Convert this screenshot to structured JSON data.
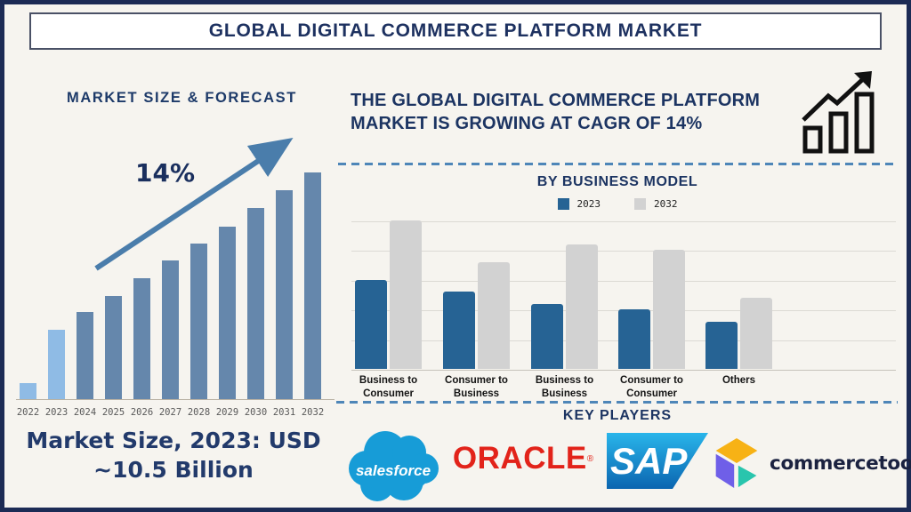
{
  "page_title": "GLOBAL DIGITAL COMMERCE PLATFORM MARKET",
  "left_panel": {
    "heading": "MARKET SIZE & FORECAST",
    "growth_label": "14%",
    "market_size_line1": "Market Size, 2023: USD",
    "market_size_line2": "~10.5 Billion"
  },
  "right_panel": {
    "heading": "THE GLOBAL DIGITAL COMMERCE PLATFORM MARKET IS GROWING AT CAGR OF 14%",
    "business_model_title": "BY BUSINESS MODEL",
    "legend": [
      {
        "label": "2023",
        "color": "#266394"
      },
      {
        "label": "2032",
        "color": "#d2d2d2"
      }
    ],
    "key_players_title": "KEY PLAYERS",
    "key_players": {
      "salesforce": "salesforce",
      "oracle": "ORACLE",
      "oracle_reg_mark": "®",
      "sap": "SAP",
      "commercetools": "commercetools"
    }
  },
  "chart_data": [
    {
      "type": "bar",
      "title": "MARKET SIZE & FORECAST",
      "categories": [
        "2022",
        "2023",
        "2024",
        "2025",
        "2026",
        "2027",
        "2028",
        "2029",
        "2030",
        "2031",
        "2032"
      ],
      "values": [
        18,
        78,
        98,
        116,
        136,
        156,
        175,
        194,
        215,
        235,
        255
      ],
      "unit": "relative bar height (axis unlabeled in source)",
      "highlight_years": [
        "2022",
        "2023"
      ],
      "annotation": "14% growth arrow",
      "xlabel": "",
      "ylabel": "",
      "gridlines": false
    },
    {
      "type": "bar",
      "title": "BY BUSINESS MODEL",
      "categories": [
        "Business to\nConsumer",
        "Consumer to\nBusiness",
        "Business to\nBusiness",
        "Consumer to\nConsumer",
        "Others"
      ],
      "series": [
        {
          "name": "2023",
          "values": [
            3.0,
            2.6,
            2.2,
            2.0,
            1.6
          ]
        },
        {
          "name": "2032",
          "values": [
            5.0,
            3.6,
            4.2,
            4.0,
            2.4
          ]
        }
      ],
      "ylim": [
        0,
        5
      ],
      "unit": "relative (axis unlabeled in source)",
      "gridlines": true,
      "legend_position": "top"
    }
  ],
  "colors": {
    "forecast_bar": "#6587ac",
    "forecast_bar_highlight": "#8fbbe5",
    "series_2023": "#266394",
    "series_2032": "#d2d2d2",
    "navy_text": "#1c3462",
    "arrow": "#4a7dab",
    "oracle_red": "#e2231a",
    "salesforce_blue": "#179cd7",
    "sap_blue_light": "#29b5ea",
    "sap_blue_dark": "#0b65b0",
    "ct_yellow": "#f7b215",
    "ct_purple": "#6f5fe8",
    "ct_teal": "#29c5ad"
  }
}
